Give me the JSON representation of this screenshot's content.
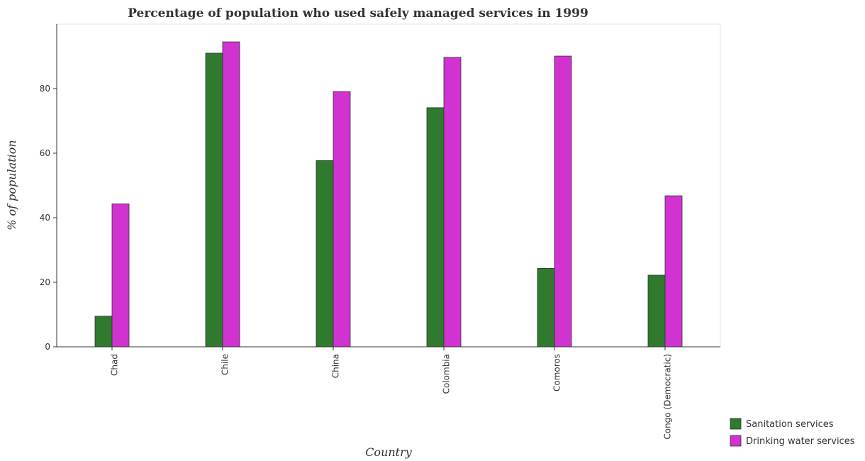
{
  "chart_data": {
    "type": "bar",
    "title": "Percentage of population who used safely managed services in 1999",
    "xlabel": "Country",
    "ylabel": "% of population",
    "categories": [
      "Chad",
      "Chile",
      "China",
      "Colombia",
      "Comoros",
      "Congo (Democratic)"
    ],
    "series": [
      {
        "name": "Sanitation services",
        "color": "#2f7a2f",
        "values": [
          9.5,
          91.0,
          57.7,
          74.1,
          24.3,
          22.2
        ]
      },
      {
        "name": "Drinking water services",
        "color": "#d033d0",
        "values": [
          44.3,
          94.5,
          79.1,
          89.7,
          90.1,
          46.8
        ]
      }
    ],
    "ylim": [
      0,
      100
    ],
    "yticks": [
      0,
      20,
      40,
      60,
      80
    ],
    "grid": false,
    "legend_position": "bottom-right"
  }
}
